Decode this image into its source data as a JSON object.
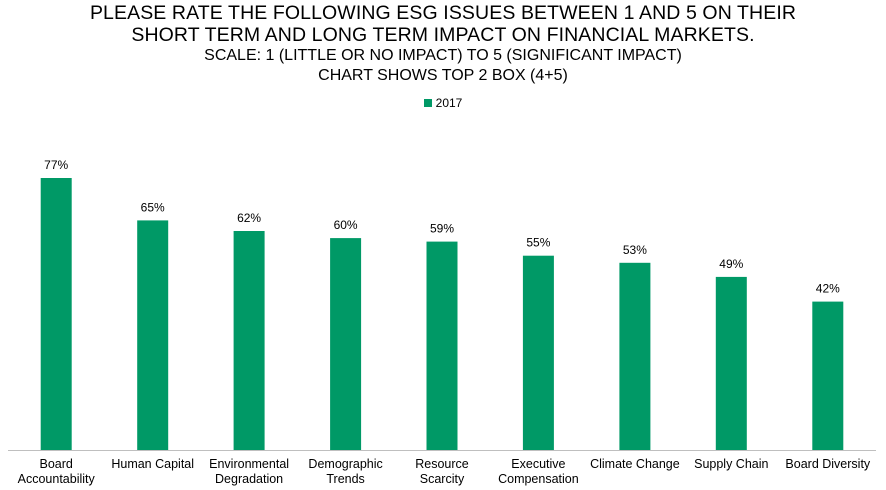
{
  "colors": {
    "bar": "#009966",
    "axis": "#bfbfbf"
  },
  "chart_data": {
    "type": "bar",
    "title_lines": [
      "PLEASE RATE THE FOLLOWING ESG ISSUES BETWEEN 1 AND 5 ON THEIR",
      "SHORT TERM AND LONG TERM IMPACT ON FINANCIAL MARKETS."
    ],
    "subtitle_lines": [
      "SCALE: 1 (LITTLE OR NO IMPACT) TO 5 (SIGNIFICANT IMPACT)",
      "CHART SHOWS TOP 2 BOX (4+5)"
    ],
    "legend_position": "top-center",
    "grid": false,
    "ylim": [
      0,
      100
    ],
    "categories": [
      [
        "Board",
        "Accountability"
      ],
      [
        "Human Capital"
      ],
      [
        "Environmental",
        "Degradation"
      ],
      [
        "Demographic",
        "Trends"
      ],
      [
        "Resource",
        "Scarcity"
      ],
      [
        "Executive",
        "Compensation"
      ],
      [
        "Climate Change"
      ],
      [
        "Supply Chain"
      ],
      [
        "Board Diversity"
      ]
    ],
    "series": [
      {
        "name": "2017",
        "values": [
          77,
          65,
          62,
          60,
          59,
          55,
          53,
          49,
          42
        ],
        "labels": [
          "77%",
          "65%",
          "62%",
          "60%",
          "59%",
          "55%",
          "53%",
          "49%",
          "42%"
        ]
      }
    ]
  }
}
